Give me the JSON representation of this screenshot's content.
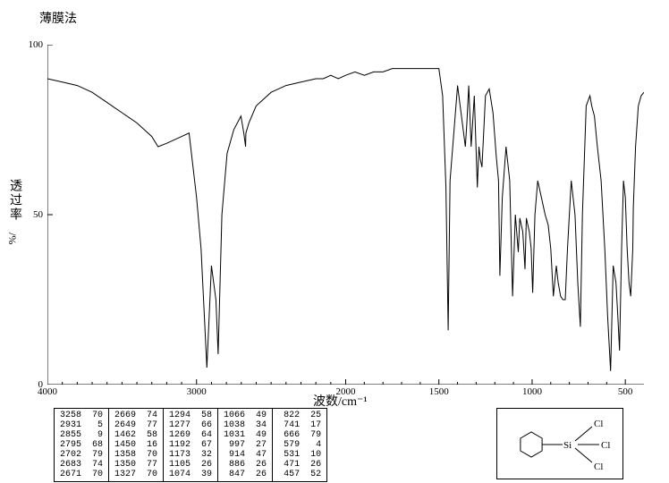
{
  "title": "薄膜法",
  "xaxis_label": "波数/cm⁻¹",
  "yaxis_label": "透过率",
  "yaxis_unit": "/%",
  "background_color": "#ffffff",
  "line_color": "#000000",
  "axis_color": "#000000",
  "text_color": "#000000",
  "chart": {
    "type": "line",
    "xlim": [
      4000,
      400
    ],
    "ylim": [
      0,
      100
    ],
    "xticks": [
      4000,
      3000,
      2000,
      1500,
      1000,
      500
    ],
    "yticks": [
      0,
      50,
      100
    ],
    "line_width": 1,
    "x_minor_ticks": [
      3900,
      3800,
      3700,
      3600,
      3500,
      3400,
      3300,
      3200,
      3100,
      2900,
      2800,
      2700,
      2600,
      2500,
      2400,
      2300,
      2200,
      2100,
      1900,
      1800,
      1700,
      1600,
      1400,
      1300,
      1200,
      1100,
      900,
      800,
      700,
      600
    ],
    "spectrum": [
      [
        4000,
        90
      ],
      [
        3900,
        89
      ],
      [
        3800,
        88
      ],
      [
        3700,
        86
      ],
      [
        3600,
        83
      ],
      [
        3500,
        80
      ],
      [
        3400,
        77
      ],
      [
        3300,
        73
      ],
      [
        3258,
        70
      ],
      [
        3200,
        71
      ],
      [
        3100,
        73
      ],
      [
        3050,
        74
      ],
      [
        3000,
        55
      ],
      [
        2970,
        40
      ],
      [
        2931,
        5
      ],
      [
        2900,
        35
      ],
      [
        2870,
        25
      ],
      [
        2855,
        9
      ],
      [
        2830,
        50
      ],
      [
        2795,
        68
      ],
      [
        2750,
        75
      ],
      [
        2702,
        79
      ],
      [
        2683,
        74
      ],
      [
        2671,
        70
      ],
      [
        2669,
        74
      ],
      [
        2649,
        77
      ],
      [
        2600,
        82
      ],
      [
        2500,
        86
      ],
      [
        2400,
        88
      ],
      [
        2300,
        89
      ],
      [
        2200,
        90
      ],
      [
        2150,
        90
      ],
      [
        2100,
        91
      ],
      [
        2050,
        90
      ],
      [
        2000,
        91
      ],
      [
        1950,
        92
      ],
      [
        1900,
        91
      ],
      [
        1850,
        92
      ],
      [
        1800,
        92
      ],
      [
        1750,
        93
      ],
      [
        1700,
        93
      ],
      [
        1650,
        93
      ],
      [
        1600,
        93
      ],
      [
        1550,
        93
      ],
      [
        1500,
        93
      ],
      [
        1480,
        85
      ],
      [
        1462,
        58
      ],
      [
        1450,
        16
      ],
      [
        1440,
        60
      ],
      [
        1400,
        88
      ],
      [
        1358,
        70
      ],
      [
        1350,
        77
      ],
      [
        1340,
        88
      ],
      [
        1327,
        70
      ],
      [
        1310,
        85
      ],
      [
        1294,
        58
      ],
      [
        1285,
        70
      ],
      [
        1277,
        66
      ],
      [
        1269,
        64
      ],
      [
        1250,
        85
      ],
      [
        1230,
        87
      ],
      [
        1210,
        80
      ],
      [
        1192,
        67
      ],
      [
        1180,
        60
      ],
      [
        1173,
        32
      ],
      [
        1160,
        55
      ],
      [
        1140,
        70
      ],
      [
        1120,
        60
      ],
      [
        1105,
        26
      ],
      [
        1090,
        50
      ],
      [
        1074,
        39
      ],
      [
        1066,
        49
      ],
      [
        1050,
        45
      ],
      [
        1038,
        34
      ],
      [
        1031,
        49
      ],
      [
        1015,
        45
      ],
      [
        1005,
        40
      ],
      [
        997,
        27
      ],
      [
        985,
        50
      ],
      [
        970,
        60
      ],
      [
        950,
        55
      ],
      [
        930,
        50
      ],
      [
        914,
        47
      ],
      [
        900,
        40
      ],
      [
        886,
        26
      ],
      [
        870,
        35
      ],
      [
        860,
        30
      ],
      [
        847,
        26
      ],
      [
        835,
        25
      ],
      [
        822,
        25
      ],
      [
        810,
        40
      ],
      [
        790,
        60
      ],
      [
        770,
        50
      ],
      [
        755,
        30
      ],
      [
        741,
        17
      ],
      [
        730,
        50
      ],
      [
        710,
        82
      ],
      [
        690,
        85
      ],
      [
        680,
        82
      ],
      [
        666,
        79
      ],
      [
        650,
        70
      ],
      [
        630,
        60
      ],
      [
        610,
        40
      ],
      [
        595,
        20
      ],
      [
        579,
        4
      ],
      [
        565,
        35
      ],
      [
        550,
        30
      ],
      [
        540,
        20
      ],
      [
        531,
        10
      ],
      [
        520,
        40
      ],
      [
        510,
        60
      ],
      [
        500,
        55
      ],
      [
        490,
        40
      ],
      [
        480,
        30
      ],
      [
        471,
        26
      ],
      [
        460,
        40
      ],
      [
        457,
        52
      ],
      [
        445,
        70
      ],
      [
        430,
        82
      ],
      [
        415,
        85
      ],
      [
        400,
        86
      ]
    ]
  },
  "peak_table": {
    "columns": 5,
    "rows_per_col": 7,
    "data": [
      [
        [
          3258,
          70
        ],
        [
          2931,
          5
        ],
        [
          2855,
          9
        ],
        [
          2795,
          68
        ],
        [
          2702,
          79
        ],
        [
          2683,
          74
        ],
        [
          2671,
          70
        ]
      ],
      [
        [
          2669,
          74
        ],
        [
          2649,
          77
        ],
        [
          1462,
          58
        ],
        [
          1450,
          16
        ],
        [
          1358,
          70
        ],
        [
          1350,
          77
        ],
        [
          1327,
          70
        ]
      ],
      [
        [
          1294,
          58
        ],
        [
          1277,
          66
        ],
        [
          1269,
          64
        ],
        [
          1192,
          67
        ],
        [
          1173,
          32
        ],
        [
          1105,
          26
        ],
        [
          1074,
          39
        ]
      ],
      [
        [
          1066,
          49
        ],
        [
          1038,
          34
        ],
        [
          1031,
          49
        ],
        [
          997,
          27
        ],
        [
          914,
          47
        ],
        [
          886,
          26
        ],
        [
          847,
          26
        ]
      ],
      [
        [
          822,
          25
        ],
        [
          741,
          17
        ],
        [
          666,
          79
        ],
        [
          579,
          4
        ],
        [
          531,
          10
        ],
        [
          471,
          26
        ],
        [
          457,
          52
        ]
      ]
    ]
  },
  "molecule": {
    "label_Cl": "Cl",
    "bond_color": "#000000",
    "ring_side": 14
  }
}
